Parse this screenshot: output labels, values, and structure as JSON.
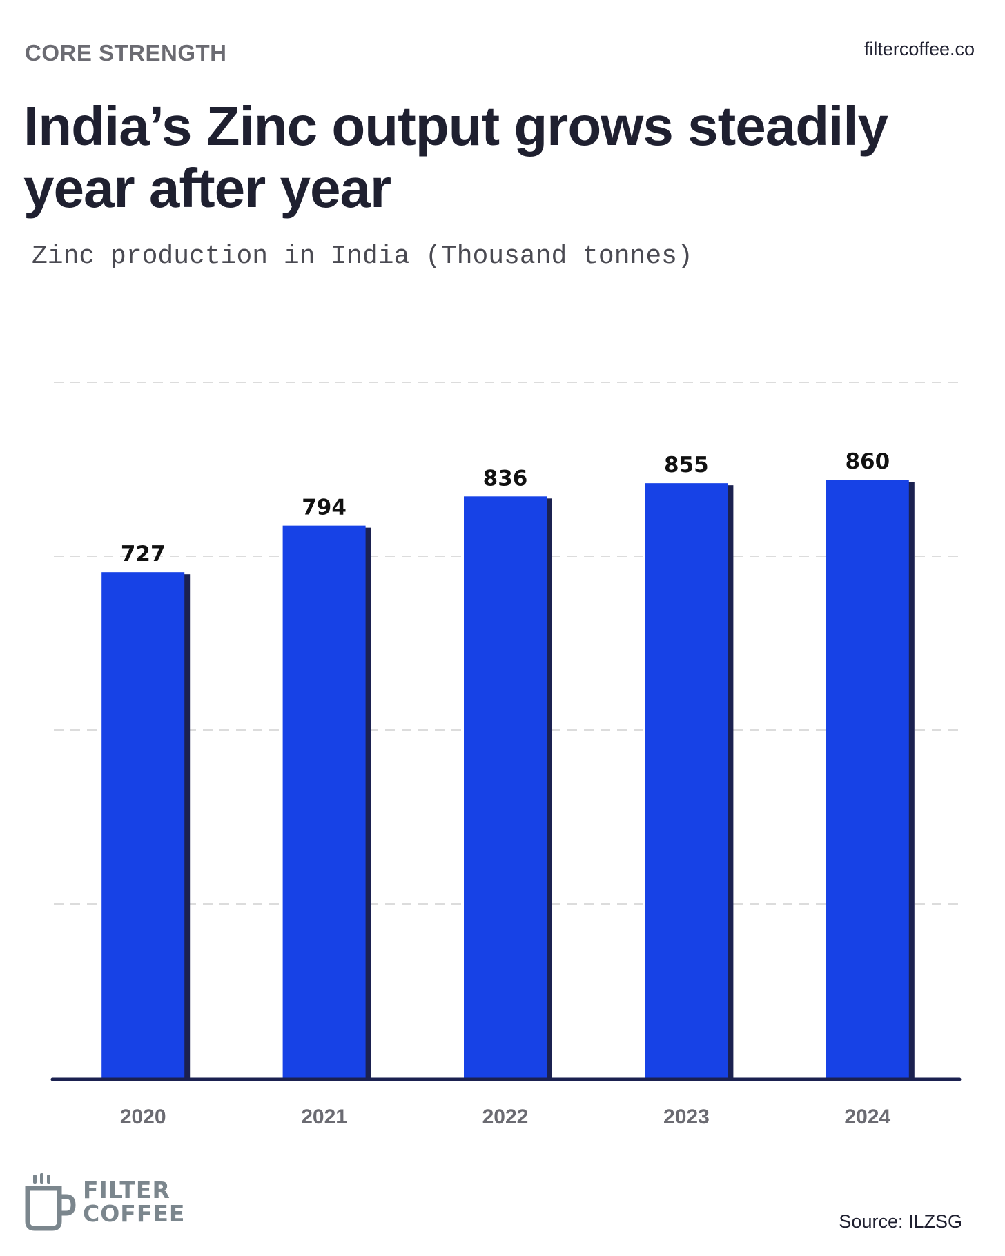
{
  "header": {
    "kicker": "CORE STRENGTH",
    "site": "filtercoffee.co",
    "title": "India’s Zinc output grows steadily year after year",
    "subtitle": "Zinc production in India (Thousand tonnes)"
  },
  "footer": {
    "logo_line1": "FILTER",
    "logo_line2": "COFFEE",
    "source": "Source: ILZSG"
  },
  "colors": {
    "bar": "#1742E6",
    "bar_shadow": "#1b2150",
    "baseline": "#1b2150",
    "grid": "#dcdcdc",
    "label": "#111111",
    "tick": "#6b6b72"
  },
  "chart_data": {
    "type": "bar",
    "title": "Zinc production in India (Thousand tonnes)",
    "xlabel": "",
    "ylabel": "Thousand tonnes",
    "categories": [
      "2020",
      "2021",
      "2022",
      "2023",
      "2024"
    ],
    "values": [
      727,
      794,
      836,
      855,
      860
    ],
    "ylim": [
      0,
      1000
    ],
    "grid": true,
    "gridlines": [
      250,
      500,
      750,
      1000
    ],
    "legend": "none"
  }
}
